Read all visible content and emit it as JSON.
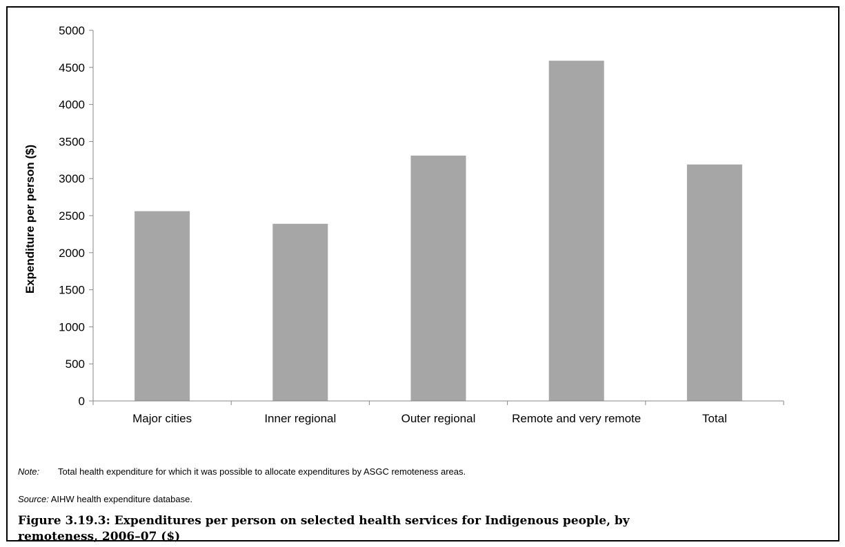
{
  "chart_data": {
    "type": "bar",
    "categories": [
      "Major cities",
      "Inner regional",
      "Outer regional",
      "Remote and very remote",
      "Total"
    ],
    "values": [
      2560,
      2390,
      3310,
      4590,
      3190
    ],
    "ylabel": "Expenditure per person ($)",
    "xlabel": "",
    "ylim": [
      0,
      5000
    ],
    "yticks": [
      "0",
      "500",
      "1000",
      "1500",
      "2000",
      "2500",
      "3000",
      "3500",
      "4000",
      "4500",
      "5000"
    ],
    "grid": false,
    "bar_color": "#a6a6a6"
  },
  "note": {
    "label": "Note:",
    "text": "Total health expenditure for which it was possible to allocate expenditures by ASGC remoteness areas."
  },
  "source": {
    "label": "Source:",
    "text": "AIHW health expenditure database."
  },
  "caption": "Figure 3.19.3: Expenditures per person on selected health services for Indigenous people, by remoteness, 2006–07 ($)"
}
